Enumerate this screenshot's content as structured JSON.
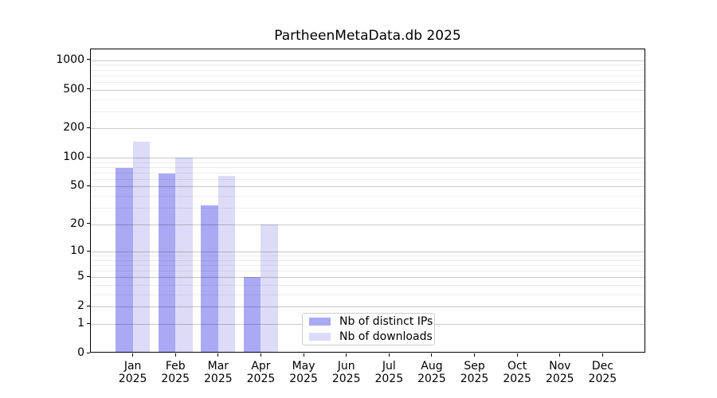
{
  "title": "PartheenMetaData.db 2025",
  "colors": {
    "distinct_ips_bar": "#a9a9f4",
    "downloads_bar": "#dcdcf8",
    "axis": "#000000",
    "grid_major": "rgba(0,0,0,0.21)",
    "grid_minor": "rgba(0,0,0,0.07)",
    "legend_border": "#cccccc",
    "background": "#ffffff"
  },
  "chart_data": {
    "type": "bar",
    "title": "PartheenMetaData.db 2025",
    "categories": [
      "Jan 2025",
      "Feb 2025",
      "Mar 2025",
      "Apr 2025",
      "May 2025",
      "Jun 2025",
      "Jul 2025",
      "Aug 2025",
      "Sep 2025",
      "Oct 2025",
      "Nov 2025",
      "Dec 2025"
    ],
    "series": [
      {
        "name": "Nb of distinct IPs",
        "color": "#a9a9f4",
        "values": [
          78,
          68,
          32,
          5,
          0,
          0,
          0,
          0,
          0,
          0,
          0,
          0
        ]
      },
      {
        "name": "Nb of downloads",
        "color": "#dcdcf8",
        "values": [
          145,
          100,
          65,
          20,
          0,
          0,
          0,
          0,
          0,
          0,
          0,
          0
        ]
      }
    ],
    "xlabel": "",
    "ylabel": "",
    "yscale": "log1p",
    "y_major_ticks": [
      0,
      1,
      2,
      5,
      10,
      20,
      50,
      100,
      200,
      500,
      1000
    ],
    "y_minor_ticks": [
      3,
      4,
      6,
      7,
      8,
      9,
      30,
      40,
      60,
      70,
      80,
      90,
      300,
      400,
      600,
      700,
      800,
      900
    ],
    "ylim": [
      0,
      1270
    ],
    "grid": true,
    "legend_position": "lower center (inside plot)"
  }
}
